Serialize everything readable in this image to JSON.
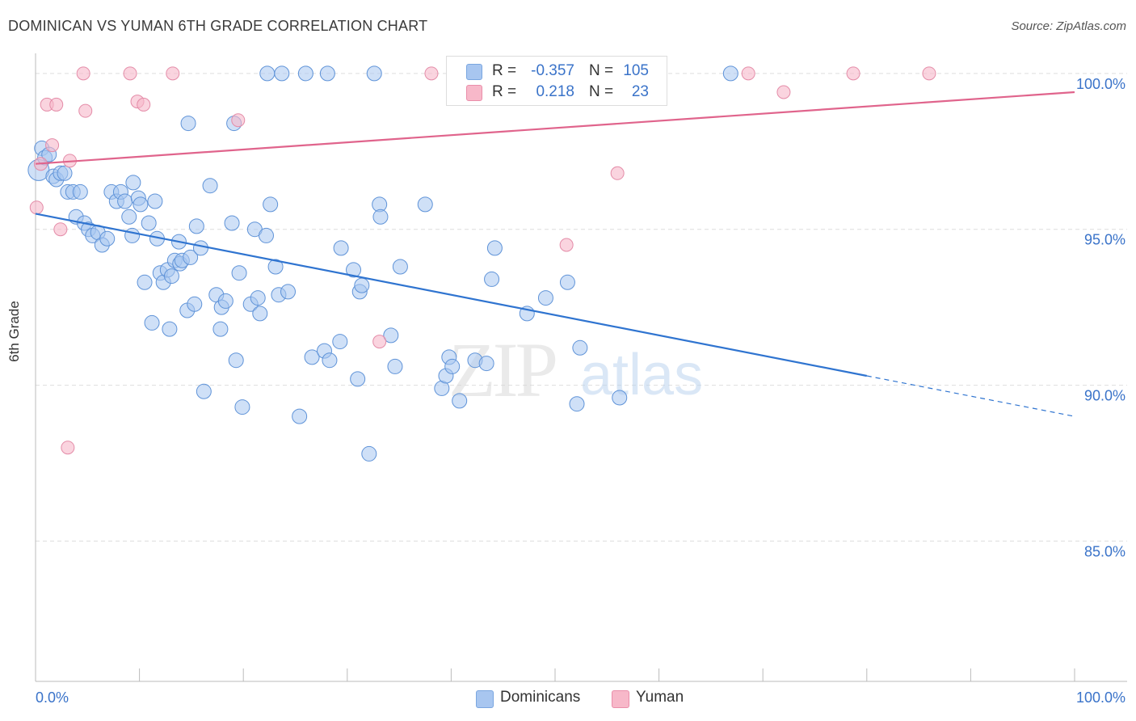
{
  "header": {
    "title": "DOMINICAN VS YUMAN 6TH GRADE CORRELATION CHART",
    "source": "Source: ZipAtlas.com"
  },
  "watermark": {
    "zip": "ZIP",
    "atlas": "atlas"
  },
  "legend": {
    "rows": [
      {
        "r_label": "R =",
        "r_value": "-0.357",
        "n_label": "N =",
        "n_value": "105",
        "color": "#a8c6f0"
      },
      {
        "r_label": "R =",
        "r_value": "0.218",
        "n_label": "N =",
        "n_value": "23",
        "color": "#f7b8c9"
      }
    ]
  },
  "bottom_legend": [
    {
      "label": "Dominicans",
      "color": "#a8c6f0"
    },
    {
      "label": "Yuman",
      "color": "#f7b8c9"
    }
  ],
  "chart_data": {
    "type": "scatter",
    "title": "DOMINICAN VS YUMAN 6TH GRADE CORRELATION CHART",
    "xlabel": "",
    "ylabel": "6th Grade",
    "xlim": [
      0,
      100
    ],
    "ylim": [
      80.5,
      100.8
    ],
    "x_tick_labels": [
      "0.0%",
      "100.0%"
    ],
    "y_ticks": [
      85,
      90,
      95,
      100
    ],
    "y_tick_labels": [
      "85.0%",
      "90.0%",
      "95.0%",
      "100.0%"
    ],
    "grid": true,
    "legend_position": "top-center",
    "colors": {
      "dominicans_fill": "#a8c6f0",
      "dominicans_line": "#2f74d0",
      "yuman_fill": "#f7b8c9",
      "yuman_line": "#e0648c",
      "axis_label": "#3a73c9"
    },
    "series": [
      {
        "name": "Dominicans",
        "trend": {
          "x": [
            0,
            80,
            100
          ],
          "y": [
            95.5,
            90.3,
            89.0
          ],
          "solid_until": 80
        },
        "points": [
          [
            0.3,
            96.9
          ],
          [
            0.6,
            97.6
          ],
          [
            0.9,
            97.3
          ],
          [
            1.3,
            97.4
          ],
          [
            1.7,
            96.7
          ],
          [
            2.0,
            96.6
          ],
          [
            2.4,
            96.8
          ],
          [
            2.8,
            96.8
          ],
          [
            3.1,
            96.2
          ],
          [
            3.6,
            96.2
          ],
          [
            3.9,
            95.4
          ],
          [
            4.3,
            96.2
          ],
          [
            4.7,
            95.2
          ],
          [
            5.1,
            95.0
          ],
          [
            5.5,
            94.8
          ],
          [
            6.0,
            94.9
          ],
          [
            6.4,
            94.5
          ],
          [
            6.9,
            94.7
          ],
          [
            7.3,
            96.2
          ],
          [
            7.8,
            95.9
          ],
          [
            8.2,
            96.2
          ],
          [
            8.6,
            95.9
          ],
          [
            9.0,
            95.4
          ],
          [
            9.3,
            94.8
          ],
          [
            9.4,
            96.5
          ],
          [
            9.9,
            96.0
          ],
          [
            10.1,
            95.8
          ],
          [
            10.5,
            93.3
          ],
          [
            10.9,
            95.2
          ],
          [
            11.2,
            92.0
          ],
          [
            11.5,
            95.9
          ],
          [
            11.7,
            94.7
          ],
          [
            12.0,
            93.6
          ],
          [
            12.3,
            93.3
          ],
          [
            12.7,
            93.7
          ],
          [
            12.9,
            91.8
          ],
          [
            13.1,
            93.5
          ],
          [
            13.4,
            94.0
          ],
          [
            13.8,
            94.6
          ],
          [
            13.9,
            93.9
          ],
          [
            14.1,
            94.0
          ],
          [
            14.6,
            92.4
          ],
          [
            14.9,
            94.1
          ],
          [
            15.3,
            92.6
          ],
          [
            15.5,
            95.1
          ],
          [
            15.9,
            94.4
          ],
          [
            16.2,
            89.8
          ],
          [
            16.8,
            96.4
          ],
          [
            17.4,
            92.9
          ],
          [
            17.8,
            91.8
          ],
          [
            17.9,
            92.5
          ],
          [
            18.3,
            92.7
          ],
          [
            18.9,
            95.2
          ],
          [
            19.3,
            90.8
          ],
          [
            19.6,
            93.6
          ],
          [
            19.9,
            89.3
          ],
          [
            20.7,
            92.6
          ],
          [
            21.1,
            95.0
          ],
          [
            21.4,
            92.8
          ],
          [
            21.6,
            92.3
          ],
          [
            22.2,
            94.8
          ],
          [
            22.6,
            95.8
          ],
          [
            23.1,
            93.8
          ],
          [
            23.4,
            92.9
          ],
          [
            24.3,
            93.0
          ],
          [
            25.4,
            89.0
          ],
          [
            26.6,
            90.9
          ],
          [
            27.8,
            91.1
          ],
          [
            28.3,
            90.8
          ],
          [
            29.3,
            91.4
          ],
          [
            29.4,
            94.4
          ],
          [
            30.6,
            93.7
          ],
          [
            31.0,
            90.2
          ],
          [
            31.2,
            93.0
          ],
          [
            31.4,
            93.2
          ],
          [
            32.1,
            87.8
          ],
          [
            33.1,
            95.8
          ],
          [
            33.2,
            95.4
          ],
          [
            34.2,
            91.6
          ],
          [
            34.6,
            90.6
          ],
          [
            35.1,
            93.8
          ],
          [
            37.5,
            95.8
          ],
          [
            39.1,
            89.9
          ],
          [
            39.5,
            90.3
          ],
          [
            39.8,
            90.9
          ],
          [
            40.1,
            90.6
          ],
          [
            40.8,
            89.5
          ],
          [
            42.3,
            90.8
          ],
          [
            43.4,
            90.7
          ],
          [
            43.9,
            93.4
          ],
          [
            44.2,
            94.4
          ],
          [
            47.3,
            92.3
          ],
          [
            49.1,
            92.8
          ],
          [
            51.2,
            93.3
          ],
          [
            52.1,
            89.4
          ],
          [
            52.4,
            91.2
          ],
          [
            56.2,
            89.6
          ],
          [
            14.7,
            98.4
          ],
          [
            22.3,
            100.0
          ],
          [
            23.7,
            100.0
          ],
          [
            26.0,
            100.0
          ],
          [
            28.1,
            100.0
          ],
          [
            32.6,
            100.0
          ],
          [
            66.9,
            100.0
          ],
          [
            19.1,
            98.4
          ]
        ]
      },
      {
        "name": "Yuman",
        "trend": {
          "x": [
            0,
            100
          ],
          "y": [
            97.1,
            99.4
          ]
        },
        "points": [
          [
            0.1,
            95.7
          ],
          [
            0.5,
            97.1
          ],
          [
            1.1,
            99.0
          ],
          [
            1.6,
            97.7
          ],
          [
            2.0,
            99.0
          ],
          [
            2.4,
            95.0
          ],
          [
            3.1,
            88.0
          ],
          [
            3.3,
            97.2
          ],
          [
            4.6,
            100.0
          ],
          [
            4.8,
            98.8
          ],
          [
            9.1,
            100.0
          ],
          [
            9.8,
            99.1
          ],
          [
            10.4,
            99.0
          ],
          [
            13.2,
            100.0
          ],
          [
            19.5,
            98.5
          ],
          [
            33.1,
            91.4
          ],
          [
            38.1,
            100.0
          ],
          [
            51.1,
            94.5
          ],
          [
            56.0,
            96.8
          ],
          [
            68.6,
            100.0
          ],
          [
            72.0,
            99.4
          ],
          [
            78.7,
            100.0
          ],
          [
            86.0,
            100.0
          ]
        ]
      }
    ]
  }
}
